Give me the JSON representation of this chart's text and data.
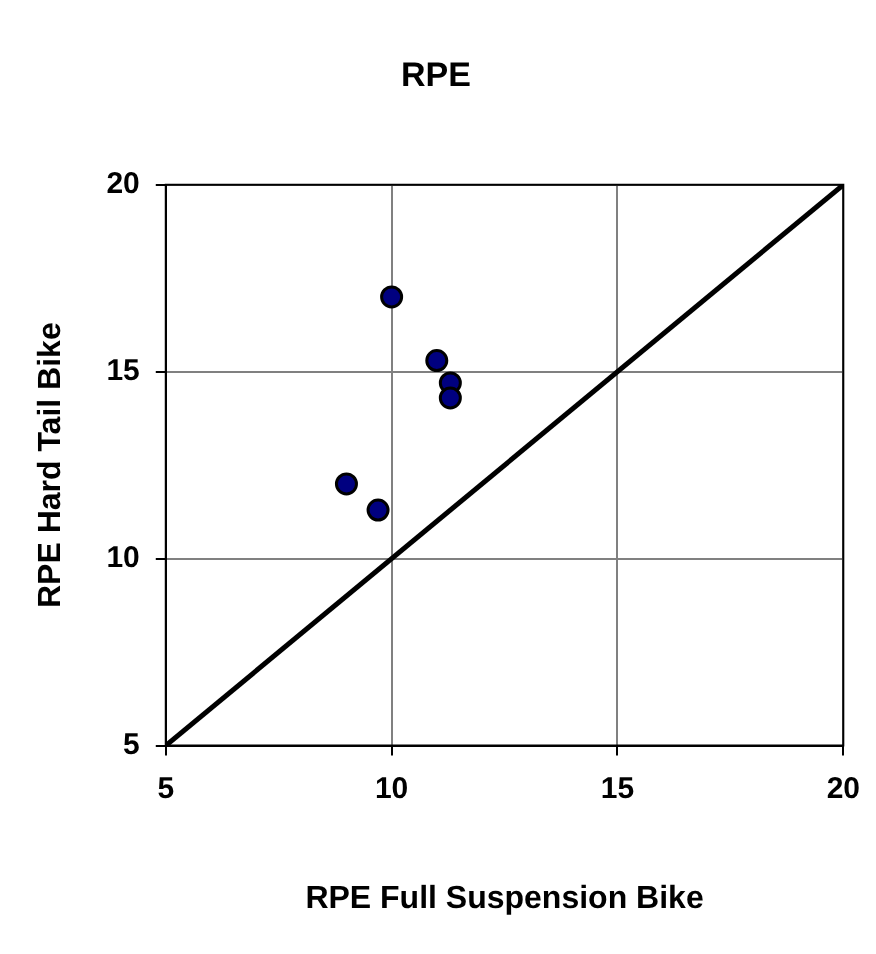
{
  "chart_data": {
    "type": "scatter",
    "title": "RPE",
    "xlabel": "RPE Full Suspension Bike",
    "ylabel": "RPE Hard Tail Bike",
    "xlim": [
      5,
      20
    ],
    "xticks": [
      5,
      10,
      15,
      20
    ],
    "ylim": [
      5,
      20
    ],
    "yticks": [
      5,
      10,
      15,
      20
    ],
    "grid": true,
    "legend": false,
    "marker": "circle",
    "series": [
      {
        "x": [
          10,
          11,
          11.3,
          11.3,
          9,
          9.7
        ],
        "values": [
          17,
          15.3,
          14.7,
          14.3,
          12,
          11.3
        ],
        "color": "#000080"
      },
      {
        "type": "line",
        "x": [
          5,
          20
        ],
        "values": [
          5,
          20
        ],
        "color": "#000000",
        "marker": "none",
        "line_style": "solid"
      }
    ]
  }
}
